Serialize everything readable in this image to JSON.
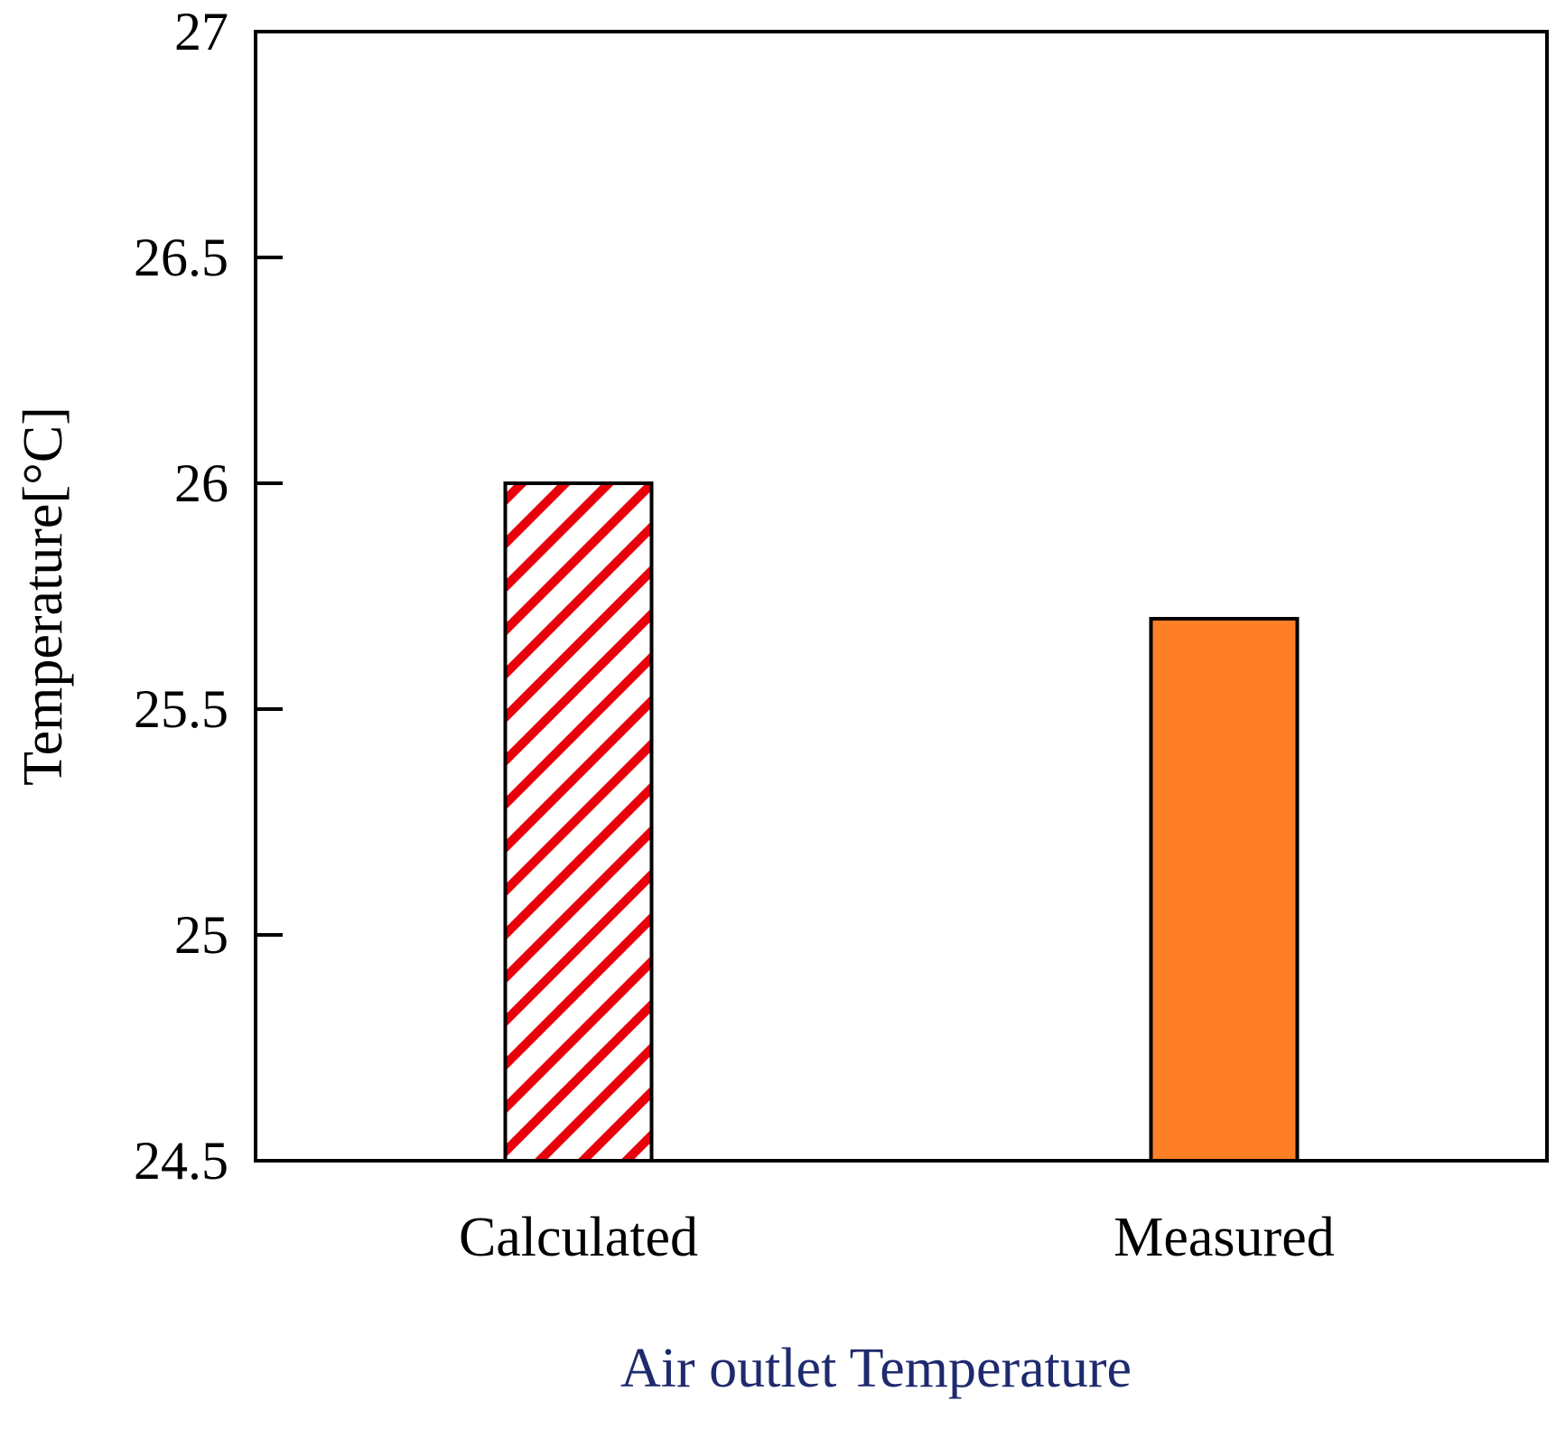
{
  "chart_data": {
    "type": "bar",
    "title": "",
    "xlabel": "Air outlet Temperature",
    "ylabel": "Temperature[°C]",
    "categories": [
      "Calculated",
      "Measured"
    ],
    "values": [
      26.0,
      25.7
    ],
    "ylim": [
      24.5,
      27
    ],
    "yticks": [
      "24.5",
      "25",
      "25.5",
      "26",
      "26.5",
      "27"
    ],
    "grid": false,
    "legend": "none",
    "bar_styles": [
      {
        "fill": "hatch",
        "hatch_color": "#e8000b",
        "background": "#ffffff"
      },
      {
        "fill": "solid",
        "color": "#ff7f27"
      }
    ],
    "xlabel_color": "#1f2a6e"
  }
}
